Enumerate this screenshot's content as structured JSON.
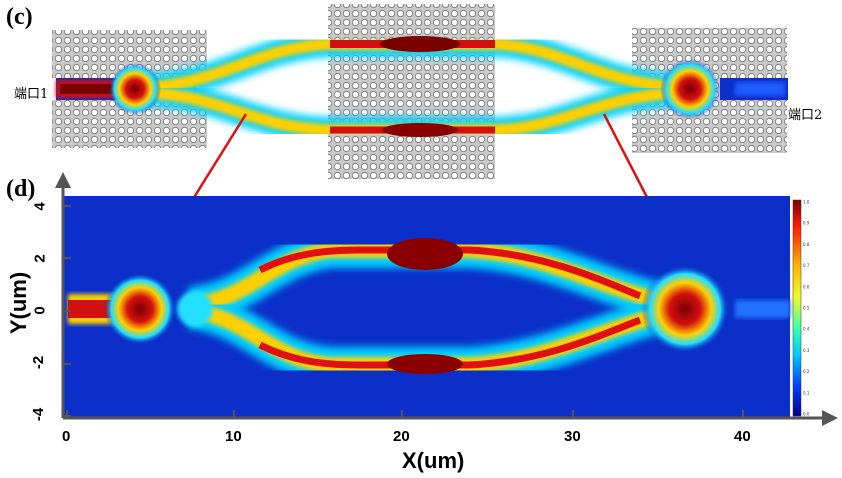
{
  "panel_labels": {
    "c": "(c)",
    "d": "(d)"
  },
  "ports": {
    "in": "端口1",
    "out": "端口2"
  },
  "axes": {
    "xlabel": "X(um)",
    "ylabel": "Y(um)",
    "x_ticks": [
      "0",
      "10",
      "20",
      "30",
      "40"
    ],
    "y_ticks": [
      "4",
      "2",
      "0",
      "-2",
      "-4"
    ]
  },
  "colorbar_ticks": [
    "1.0",
    "0.9",
    "0.8",
    "0.7",
    "0.6",
    "0.5",
    "0.4",
    "0.3",
    "0.2",
    "0.1",
    "0.0"
  ],
  "colors": {
    "background_field": "#0b2fc8",
    "photonic_crystal": "#c8c8c8",
    "guide_line": "#e01010",
    "axis": "#555555"
  }
}
